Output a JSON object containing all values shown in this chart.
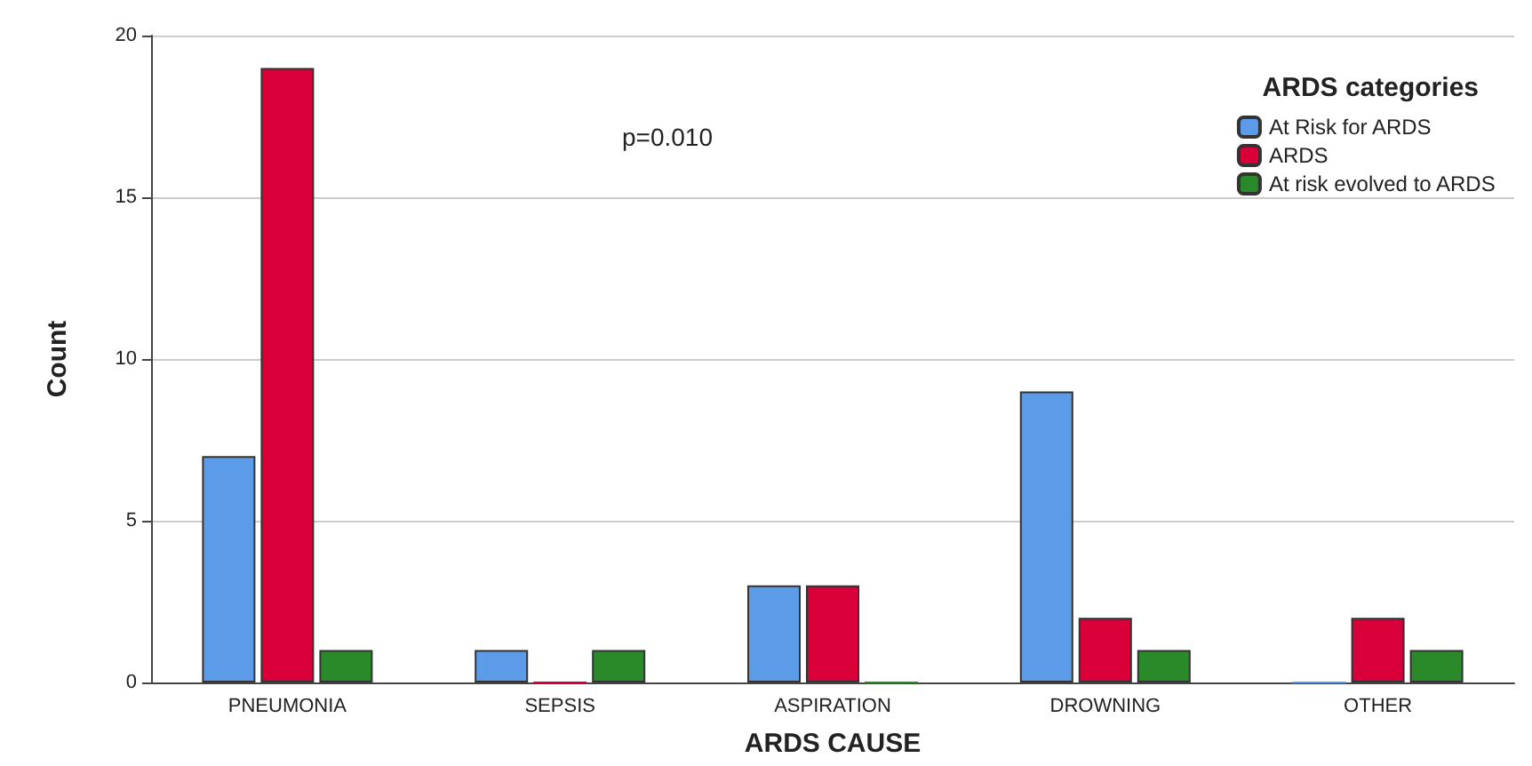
{
  "chart_data": {
    "type": "bar",
    "xlabel": "ARDS CAUSE",
    "ylabel": "Count",
    "legend_title": "ARDS categories",
    "categories": [
      "PNEUMONIA",
      "SEPSIS",
      "ASPIRATION",
      "DROWNING",
      "OTHER"
    ],
    "series": [
      {
        "name": "At Risk for ARDS",
        "color": "#5b9be8",
        "values": [
          7,
          1,
          3,
          9,
          0
        ]
      },
      {
        "name": "ARDS",
        "color": "#d9003a",
        "values": [
          19,
          0,
          3,
          2,
          2
        ]
      },
      {
        "name": "At risk evolved to ARDS",
        "color": "#2a8a2a",
        "values": [
          1,
          1,
          0,
          1,
          1
        ]
      }
    ],
    "ylim": [
      0,
      20
    ],
    "yticks": [
      0,
      5,
      10,
      15,
      20
    ],
    "grid": "y",
    "legend": "top right",
    "annotations": [
      "p=0.010"
    ]
  }
}
